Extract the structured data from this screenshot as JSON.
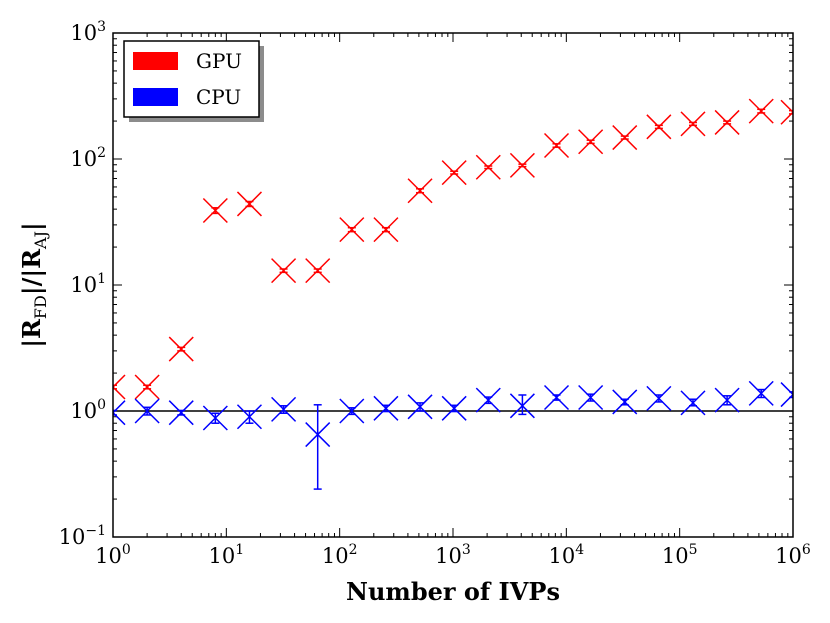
{
  "chart_data": {
    "type": "scatter",
    "xlabel": "Number of IVPs",
    "ylabel": {
      "base": "|R",
      "num_sub": "FD",
      "mid": "|/|R",
      "den_sub": "AJ",
      "end": "|"
    },
    "xscale": "log",
    "yscale": "log",
    "xlim": [
      1,
      1000000
    ],
    "ylim": [
      0.1,
      1000
    ],
    "xticks": [
      {
        "base": "10",
        "exp": "0"
      },
      {
        "base": "10",
        "exp": "1"
      },
      {
        "base": "10",
        "exp": "2"
      },
      {
        "base": "10",
        "exp": "3"
      },
      {
        "base": "10",
        "exp": "4"
      },
      {
        "base": "10",
        "exp": "5"
      },
      {
        "base": "10",
        "exp": "6"
      }
    ],
    "yticks": [
      {
        "base": "10",
        "exp": "−1"
      },
      {
        "base": "10",
        "exp": "0"
      },
      {
        "base": "10",
        "exp": "1"
      },
      {
        "base": "10",
        "exp": "2"
      },
      {
        "base": "10",
        "exp": "3"
      }
    ],
    "reference_line_y": 1,
    "legend_position": "top-left",
    "series": [
      {
        "name": "GPU",
        "color": "#ff0000",
        "marker": "x",
        "points": [
          {
            "x": 1,
            "y": 1.55,
            "lo": 1.5,
            "hi": 1.6
          },
          {
            "x": 2,
            "y": 1.55,
            "lo": 1.5,
            "hi": 1.6
          },
          {
            "x": 4,
            "y": 3.1,
            "lo": 3.0,
            "hi": 3.2
          },
          {
            "x": 8,
            "y": 39,
            "lo": 37,
            "hi": 41
          },
          {
            "x": 16,
            "y": 44,
            "lo": 42,
            "hi": 46
          },
          {
            "x": 32,
            "y": 13,
            "lo": 12.6,
            "hi": 13.4
          },
          {
            "x": 64,
            "y": 13,
            "lo": 12.6,
            "hi": 13.4
          },
          {
            "x": 128,
            "y": 27.5,
            "lo": 26.5,
            "hi": 28.5
          },
          {
            "x": 256,
            "y": 27.5,
            "lo": 26.5,
            "hi": 28.5
          },
          {
            "x": 512,
            "y": 56,
            "lo": 54,
            "hi": 58
          },
          {
            "x": 1024,
            "y": 78,
            "lo": 76,
            "hi": 80
          },
          {
            "x": 2048,
            "y": 86,
            "lo": 84,
            "hi": 88
          },
          {
            "x": 4096,
            "y": 89,
            "lo": 87,
            "hi": 91
          },
          {
            "x": 8192,
            "y": 128,
            "lo": 124,
            "hi": 132
          },
          {
            "x": 16384,
            "y": 137,
            "lo": 133,
            "hi": 141
          },
          {
            "x": 32768,
            "y": 148,
            "lo": 144,
            "hi": 152
          },
          {
            "x": 65536,
            "y": 180,
            "lo": 175,
            "hi": 185
          },
          {
            "x": 131072,
            "y": 190,
            "lo": 185,
            "hi": 195
          },
          {
            "x": 262144,
            "y": 195,
            "lo": 190,
            "hi": 200
          },
          {
            "x": 524288,
            "y": 240,
            "lo": 232,
            "hi": 248
          },
          {
            "x": 1000000,
            "y": 235,
            "lo": 228,
            "hi": 242
          }
        ]
      },
      {
        "name": "CPU",
        "color": "#0000ff",
        "marker": "x",
        "points": [
          {
            "x": 1,
            "y": 0.97,
            "lo": 0.93,
            "hi": 1.01
          },
          {
            "x": 2,
            "y": 1.0,
            "lo": 0.93,
            "hi": 1.07
          },
          {
            "x": 4,
            "y": 0.97,
            "lo": 0.93,
            "hi": 1.01
          },
          {
            "x": 8,
            "y": 0.88,
            "lo": 0.8,
            "hi": 0.96
          },
          {
            "x": 16,
            "y": 0.9,
            "lo": 0.8,
            "hi": 1.0
          },
          {
            "x": 32,
            "y": 1.03,
            "lo": 0.96,
            "hi": 1.1
          },
          {
            "x": 64,
            "y": 0.65,
            "lo": 0.24,
            "hi": 1.12
          },
          {
            "x": 128,
            "y": 1.0,
            "lo": 0.94,
            "hi": 1.06
          },
          {
            "x": 256,
            "y": 1.05,
            "lo": 0.99,
            "hi": 1.11
          },
          {
            "x": 512,
            "y": 1.08,
            "lo": 1.0,
            "hi": 1.16
          },
          {
            "x": 1024,
            "y": 1.05,
            "lo": 0.99,
            "hi": 1.11
          },
          {
            "x": 2048,
            "y": 1.22,
            "lo": 1.15,
            "hi": 1.29
          },
          {
            "x": 4096,
            "y": 1.1,
            "lo": 0.94,
            "hi": 1.34
          },
          {
            "x": 8192,
            "y": 1.28,
            "lo": 1.22,
            "hi": 1.34
          },
          {
            "x": 16384,
            "y": 1.28,
            "lo": 1.2,
            "hi": 1.36
          },
          {
            "x": 32768,
            "y": 1.18,
            "lo": 1.12,
            "hi": 1.24
          },
          {
            "x": 65536,
            "y": 1.26,
            "lo": 1.18,
            "hi": 1.34
          },
          {
            "x": 131072,
            "y": 1.16,
            "lo": 1.1,
            "hi": 1.24
          },
          {
            "x": 262144,
            "y": 1.22,
            "lo": 1.12,
            "hi": 1.32
          },
          {
            "x": 524288,
            "y": 1.38,
            "lo": 1.28,
            "hi": 1.48
          },
          {
            "x": 1000000,
            "y": 1.35,
            "lo": 1.28,
            "hi": 1.42
          }
        ]
      }
    ]
  }
}
